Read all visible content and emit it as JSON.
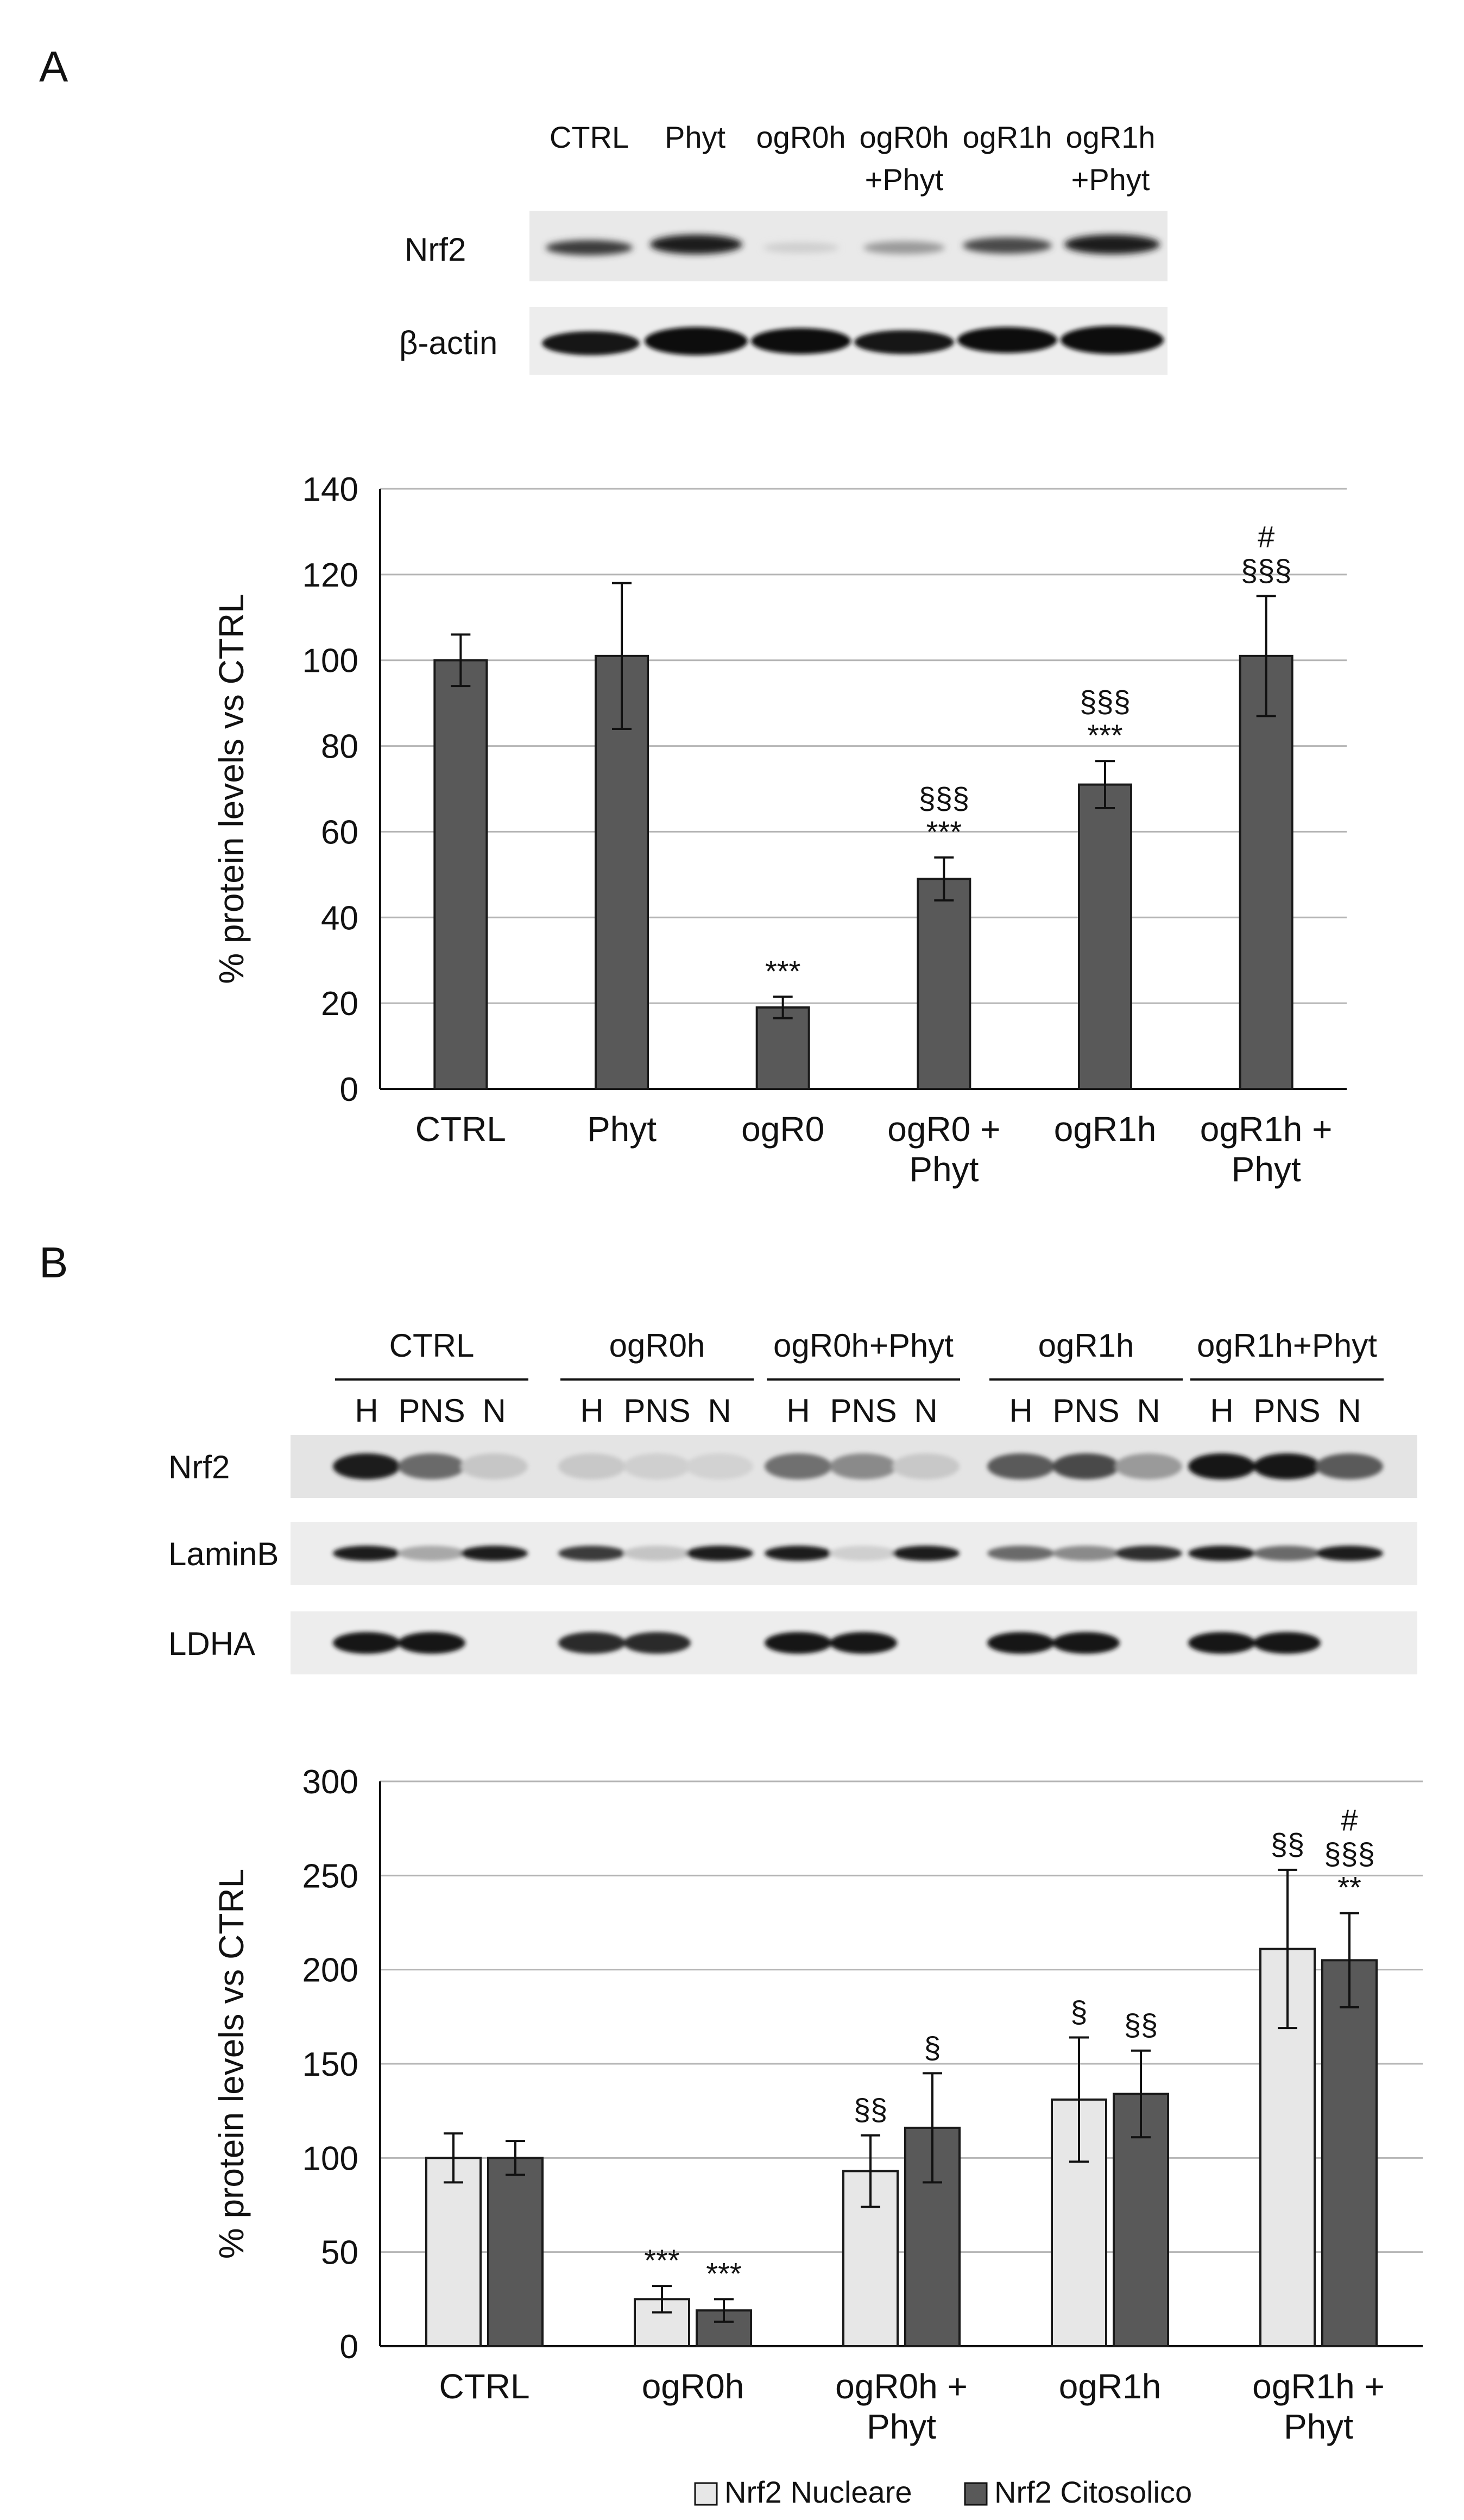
{
  "panel_a": {
    "letter": "A",
    "blot": {
      "lanes": [
        {
          "top": "CTRL",
          "bottom": ""
        },
        {
          "top": "Phyt",
          "bottom": ""
        },
        {
          "top": "ogR0h",
          "bottom": ""
        },
        {
          "top": "ogR0h",
          "bottom": "+Phyt"
        },
        {
          "top": "ogR1h",
          "bottom": ""
        },
        {
          "top": "ogR1h",
          "bottom": "+Phyt"
        }
      ],
      "rows": [
        "Nrf2",
        "β-actin"
      ]
    }
  },
  "panel_b": {
    "letter": "B",
    "blot": {
      "groups": [
        "CTRL",
        "ogR0h",
        "ogR0h+Phyt",
        "ogR1h",
        "ogR1h+Phyt"
      ],
      "fractions": [
        "H",
        "PNS",
        "N"
      ],
      "rows": [
        "Nrf2",
        "LaminB",
        "LDHA"
      ]
    }
  },
  "chart_data": [
    {
      "type": "bar",
      "title": "",
      "xlabel": "",
      "ylabel": "% protein levels vs CTRL",
      "ylim": [
        0,
        140
      ],
      "yticks": [
        0,
        20,
        40,
        60,
        80,
        100,
        120,
        140
      ],
      "grid": true,
      "categories": [
        [
          "CTRL"
        ],
        [
          "Phyt"
        ],
        [
          "ogR0"
        ],
        [
          "ogR0 +",
          "Phyt"
        ],
        [
          "ogR1h"
        ],
        [
          "ogR1h +",
          "Phyt"
        ]
      ],
      "series": [
        {
          "color": "#595959",
          "values": [
            100,
            101,
            19,
            49,
            71,
            101
          ],
          "errors": [
            6,
            17,
            2.5,
            5,
            5.5,
            14
          ],
          "annotations": [
            [],
            [],
            [
              "***"
            ],
            [
              "§§§",
              "***"
            ],
            [
              "§§§",
              "***"
            ],
            [
              "#",
              "§§§"
            ]
          ]
        }
      ]
    },
    {
      "type": "bar",
      "title": "",
      "xlabel": "",
      "ylabel": "% protein levels vs CTRL",
      "ylim": [
        0,
        300
      ],
      "yticks": [
        0,
        50,
        100,
        150,
        200,
        250,
        300
      ],
      "grid": true,
      "legend": "bottom",
      "categories": [
        [
          "CTRL"
        ],
        [
          "ogR0h"
        ],
        [
          "ogR0h +",
          "Phyt"
        ],
        [
          "ogR1h"
        ],
        [
          "ogR1h +",
          "Phyt"
        ]
      ],
      "series": [
        {
          "name": "Nrf2 Nucleare",
          "color": "#e7e7e7",
          "values": [
            100,
            25,
            93,
            131,
            211
          ],
          "errors": [
            13,
            7,
            19,
            33,
            42
          ],
          "annotations": [
            [],
            [
              "***"
            ],
            [
              "§§"
            ],
            [
              "§"
            ],
            [
              "§§"
            ]
          ]
        },
        {
          "name": "Nrf2 Citosolico",
          "color": "#595959",
          "values": [
            100,
            19,
            116,
            134,
            205
          ],
          "errors": [
            9,
            6,
            29,
            23,
            25
          ],
          "annotations": [
            [],
            [
              "***"
            ],
            [
              "§"
            ],
            [
              "§§"
            ],
            [
              "#",
              "§§§",
              "**"
            ]
          ]
        }
      ]
    }
  ]
}
